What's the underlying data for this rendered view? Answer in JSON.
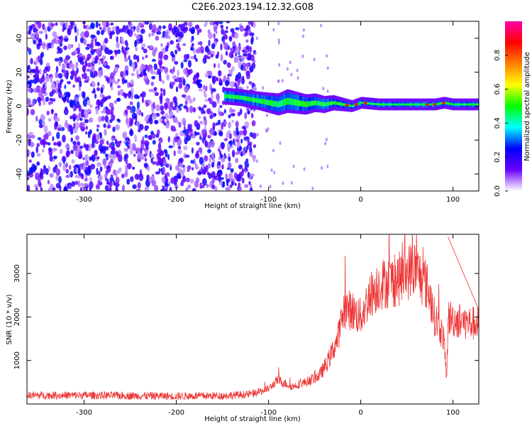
{
  "title": "C2E6.2023.194.12.32.G08",
  "chart_data": [
    {
      "type": "heatmap",
      "title": "",
      "xlabel": "Height of straight line (km)",
      "ylabel": "Frequency (Hz)",
      "xlim": [
        -362,
        128
      ],
      "ylim": [
        -50,
        50
      ],
      "xticks": [
        -300,
        -200,
        -100,
        0,
        100
      ],
      "yticks": [
        -40,
        -20,
        0,
        20,
        40
      ],
      "noise_region_x": [
        -362,
        -125
      ],
      "signal_track": {
        "x": [
          -148,
          -130,
          -110,
          -100,
          -90,
          -80,
          -70,
          -60,
          -50,
          -40,
          -30,
          -20,
          -10,
          0,
          20,
          40,
          60,
          80,
          90,
          100,
          128
        ],
        "center": [
          6,
          5,
          3,
          2,
          1,
          3,
          2,
          1,
          2,
          1,
          2,
          1,
          0,
          2,
          1,
          1,
          1,
          1,
          2,
          1,
          1
        ],
        "width": [
          6,
          6,
          7,
          8,
          9,
          10,
          9,
          8,
          7,
          6,
          5,
          4,
          3,
          3,
          3,
          3,
          3,
          3,
          3,
          3,
          3
        ]
      },
      "hot_spots_x": [
        -15,
        -5,
        5,
        72,
        80,
        90
      ],
      "colorbar": {
        "label": "Normalized spectral amplitude",
        "range": [
          0,
          1
        ],
        "ticks": [
          0.0,
          0.2,
          0.4,
          0.6,
          0.8
        ],
        "colormap": [
          "#ffffff",
          "#6a00ff",
          "#0000ff",
          "#00ffff",
          "#00ff00",
          "#ffff00",
          "#ff8000",
          "#ff0000",
          "#ff00aa"
        ]
      }
    },
    {
      "type": "line",
      "title": "",
      "xlabel": "Height of straight line (km)",
      "ylabel": "SNR (10 * v/v)",
      "xlim": [
        -362,
        128
      ],
      "ylim": [
        0,
        3900
      ],
      "xticks": [
        -300,
        -200,
        -100,
        0,
        100
      ],
      "yticks": [
        1000,
        2000,
        3000
      ],
      "line_color": "#ee3333",
      "series": [
        {
          "name": "",
          "x": [
            -362,
            -300,
            -250,
            -200,
            -150,
            -130,
            -115,
            -100,
            -90,
            -75,
            -60,
            -45,
            -35,
            -25,
            -18,
            -10,
            0,
            10,
            20,
            30,
            40,
            50,
            55,
            60,
            65,
            70,
            75,
            80,
            85,
            90,
            93,
            95,
            100,
            110,
            120,
            128
          ],
          "values": [
            200,
            200,
            190,
            180,
            190,
            210,
            240,
            350,
            550,
            400,
            500,
            650,
            1000,
            1500,
            2200,
            2150,
            2000,
            2500,
            2750,
            2800,
            2850,
            3000,
            3100,
            3100,
            2900,
            2800,
            2500,
            2000,
            1800,
            1500,
            600,
            2000,
            1950,
            1900,
            1850,
            1850
          ]
        }
      ]
    }
  ]
}
